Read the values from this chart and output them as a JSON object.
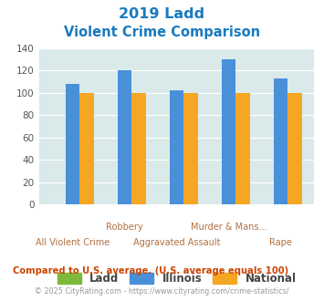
{
  "title_line1": "2019 Ladd",
  "title_line2": "Violent Crime Comparison",
  "tick_labels_row1": [
    "",
    "Robbery",
    "",
    "Murder & Mans...",
    ""
  ],
  "tick_labels_row2": [
    "All Violent Crime",
    "",
    "Aggravated Assault",
    "",
    "Rape"
  ],
  "ladd_values": [
    0,
    0,
    0,
    0,
    0
  ],
  "illinois_values": [
    108,
    120,
    102,
    130,
    113
  ],
  "national_values": [
    100,
    100,
    100,
    100,
    100
  ],
  "bar_color_ladd": "#7db93d",
  "bar_color_illinois": "#4a90d9",
  "bar_color_national": "#f5a623",
  "ylim": [
    0,
    140
  ],
  "yticks": [
    0,
    20,
    40,
    60,
    80,
    100,
    120,
    140
  ],
  "bg_color": "#daeaea",
  "title_color": "#1a7abf",
  "footnote1": "Compared to U.S. average. (U.S. average equals 100)",
  "footnote2": "© 2025 CityRating.com - https://www.cityrating.com/crime-statistics/",
  "footnote1_color": "#cc4400",
  "footnote2_color": "#999999",
  "grid_color": "#ffffff",
  "tick_label_color": "#b07040",
  "legend_text_color": "#444444"
}
